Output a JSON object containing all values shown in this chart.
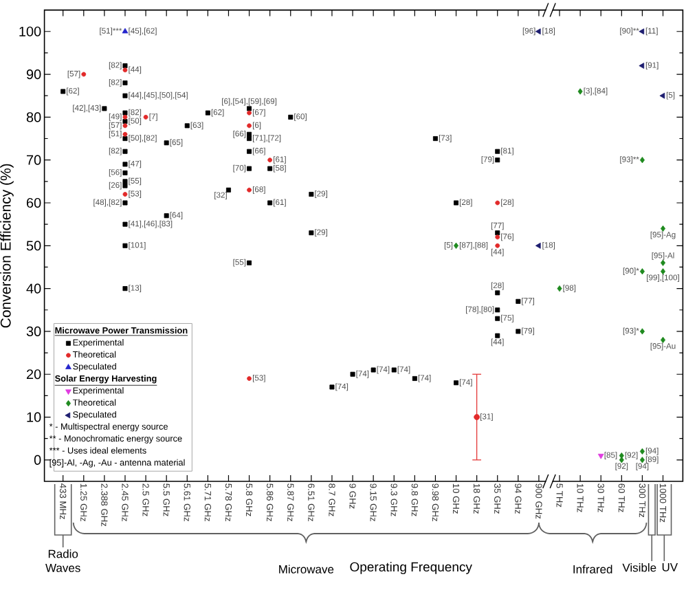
{
  "chart_data": {
    "type": "scatter",
    "ylabel": "Conversion Efficiency (%)",
    "xlabel": "Operating Frequency",
    "categories": [
      "433 MHz",
      "1.25 GHz",
      "2.388 GHz",
      "2.45 GHz",
      "2.5 GHz",
      "5.5 GHz",
      "5.61 GHz",
      "5.71 GHz",
      "5.78 GHz",
      "5.8 GHz",
      "5.86 GHz",
      "5.87 GHz",
      "6.51 GHz",
      "8.7 GHz",
      "9 GHz",
      "9.15 GHz",
      "9.3 GHz",
      "9.8 GHz",
      "9.98 GHz",
      "10 GHz",
      "18 GHz",
      "35 GHz",
      "94 GHz",
      "900 GHz",
      "5 THz",
      "10 THz",
      "30 THz",
      "60 THz",
      "300 THz",
      "1000 THz"
    ],
    "ylim": [
      -5,
      105
    ],
    "yticks": [
      0,
      10,
      20,
      30,
      40,
      50,
      60,
      70,
      80,
      90,
      100
    ],
    "legend": "bottom left",
    "series": [
      {
        "name": "Experimental",
        "color": "#000000",
        "marker": "square",
        "x": [
          "433 MHz",
          "2.388 GHz",
          "2.45 GHz",
          "2.45 GHz",
          "2.45 GHz",
          "2.45 GHz",
          "2.45 GHz",
          "2.45 GHz",
          "2.45 GHz",
          "2.45 GHz",
          "2.45 GHz",
          "2.45 GHz",
          "2.45 GHz",
          "2.45 GHz",
          "2.45 GHz",
          "2.45 GHz",
          "2.45 GHz",
          "5.5 GHz",
          "5.5 GHz",
          "5.61 GHz",
          "5.71 GHz",
          "5.78 GHz",
          "5.8 GHz",
          "5.8 GHz",
          "5.8 GHz",
          "5.8 GHz",
          "5.8 GHz",
          "5.8 GHz",
          "5.86 GHz",
          "5.86 GHz",
          "5.87 GHz",
          "6.51 GHz",
          "6.51 GHz",
          "8.7 GHz",
          "9 GHz",
          "9.15 GHz",
          "9.3 GHz",
          "9.8 GHz",
          "9.98 GHz",
          "10 GHz",
          "10 GHz",
          "35 GHz",
          "35 GHz",
          "35 GHz",
          "35 GHz",
          "35 GHz",
          "35 GHz",
          "35 GHz",
          "94 GHz",
          "94 GHz"
        ],
        "values": [
          86,
          82,
          92,
          88,
          85,
          81,
          79,
          75,
          72,
          69,
          67,
          65,
          64,
          60,
          55,
          50,
          40,
          74,
          57,
          78,
          81,
          63,
          82,
          76,
          75,
          72,
          68,
          46,
          68,
          60,
          80,
          62,
          53,
          17,
          20,
          21,
          21,
          19,
          75,
          60,
          18,
          72,
          70,
          53,
          39,
          35,
          33,
          29,
          37,
          30
        ]
      },
      {
        "name": "Theoretical",
        "color": "#e22a2a",
        "marker": "circle",
        "x": [
          "1.25 GHz",
          "2.45 GHz",
          "2.45 GHz",
          "2.45 GHz",
          "2.45 GHz",
          "2.45 GHz",
          "2.5 GHz",
          "5.8 GHz",
          "5.8 GHz",
          "5.8 GHz",
          "5.8 GHz",
          "5.86 GHz",
          "18 GHz",
          "35 GHz",
          "35 GHz",
          "35 GHz"
        ],
        "values": [
          90,
          91,
          80,
          78,
          76,
          62,
          80,
          81,
          78,
          63,
          19,
          70,
          10,
          60,
          52,
          50
        ],
        "errors": [
          null,
          null,
          null,
          null,
          null,
          null,
          null,
          null,
          null,
          null,
          null,
          null,
          [
            0,
            20
          ],
          null,
          null,
          null
        ]
      },
      {
        "name": "Speculated",
        "color": "#2626cc",
        "marker": "triangle",
        "x": [
          "2.45 GHz"
        ],
        "values": [
          100
        ]
      },
      {
        "name": "Experimental",
        "color": "#e03ce0",
        "marker": "triangle-down",
        "x": [
          "30 THz"
        ],
        "values": [
          1
        ]
      },
      {
        "name": "Theoretical",
        "color": "#1f8a1f",
        "marker": "diamond",
        "x": [
          "10 GHz",
          "5 THz",
          "10 THz",
          "60 THz",
          "60 THz",
          "300 THz",
          "300 THz",
          "300 THz",
          "300 THz",
          "300 THz",
          "1000 THz",
          "1000 THz",
          "1000 THz",
          "1000 THz"
        ],
        "values": [
          50,
          40,
          86,
          1,
          0,
          70,
          44,
          30,
          2,
          0,
          54,
          46,
          44,
          28
        ]
      },
      {
        "name": "Speculated",
        "color": "#1e1e70",
        "marker": "triangle-left",
        "x": [
          "900 GHz",
          "900 GHz",
          "300 THz",
          "300 THz",
          "1000 THz"
        ],
        "values": [
          100,
          50,
          100,
          92,
          85
        ]
      }
    ],
    "annotations": [
      "Microwave Power Transmission",
      "Solar Energy Harvesting",
      "* - Multispectral energy source",
      "** - Monochromatic energy source",
      "*** - Uses ideal elements",
      "[95]-Al, -Ag, -Au - antenna material",
      "Radio Waves",
      "Microwave",
      "Infrared",
      "Visible",
      "UV",
      {
        "text": "[62]",
        "x": "433 MHz",
        "y": 86
      },
      {
        "text": "[57]",
        "x": "1.25 GHz",
        "y": 90
      },
      {
        "text": "[42],[43]",
        "x": "2.388 GHz",
        "y": 82
      },
      {
        "text": "[51]***",
        "x": "2.45 GHz",
        "y": 100
      },
      {
        "text": "[45],[62]",
        "x": "2.45 GHz",
        "y": 100
      },
      {
        "text": "[82]",
        "x": "2.45 GHz",
        "y": 92
      },
      {
        "text": "[44]",
        "x": "2.45 GHz",
        "y": 91
      },
      {
        "text": "[82]",
        "x": "2.45 GHz",
        "y": 88
      },
      {
        "text": "[44],[45],[50],[54]",
        "x": "2.45 GHz",
        "y": 85
      },
      {
        "text": "[82]",
        "x": "2.45 GHz",
        "y": 81
      },
      {
        "text": "[49]",
        "x": "2.45 GHz",
        "y": 80
      },
      {
        "text": "[50]",
        "x": "2.45 GHz",
        "y": 79
      },
      {
        "text": "[57]",
        "x": "2.45 GHz",
        "y": 78
      },
      {
        "text": "[51]",
        "x": "2.45 GHz",
        "y": 76
      },
      {
        "text": "[50],[82]",
        "x": "2.45 GHz",
        "y": 75
      },
      {
        "text": "[82]",
        "x": "2.45 GHz",
        "y": 72
      },
      {
        "text": "[47]",
        "x": "2.45 GHz",
        "y": 69
      },
      {
        "text": "[56]",
        "x": "2.45 GHz",
        "y": 67
      },
      {
        "text": "[55]",
        "x": "2.45 GHz",
        "y": 65
      },
      {
        "text": "[26]",
        "x": "2.45 GHz",
        "y": 64
      },
      {
        "text": "[53]",
        "x": "2.45 GHz",
        "y": 62
      },
      {
        "text": "[48],[82]",
        "x": "2.45 GHz",
        "y": 60
      },
      {
        "text": "[41],[46],[83]",
        "x": "2.45 GHz",
        "y": 55
      },
      {
        "text": "[101]",
        "x": "2.45 GHz",
        "y": 50
      },
      {
        "text": "[13]",
        "x": "2.45 GHz",
        "y": 40
      },
      {
        "text": "[7]",
        "x": "2.5 GHz",
        "y": 80
      },
      {
        "text": "[65]",
        "x": "5.5 GHz",
        "y": 74
      },
      {
        "text": "[64]",
        "x": "5.5 GHz",
        "y": 57
      },
      {
        "text": "[63]",
        "x": "5.61 GHz",
        "y": 78
      },
      {
        "text": "[62]",
        "x": "5.71 GHz",
        "y": 81
      },
      {
        "text": "[32]",
        "x": "5.78 GHz",
        "y": 63
      },
      {
        "text": "[6],[54],[59],[69]",
        "x": "5.8 GHz",
        "y": 82
      },
      {
        "text": "[67]",
        "x": "5.8 GHz",
        "y": 81
      },
      {
        "text": "[6]",
        "x": "5.8 GHz",
        "y": 78
      },
      {
        "text": "[66]",
        "x": "5.8 GHz",
        "y": 76
      },
      {
        "text": "[71],[72]",
        "x": "5.8 GHz",
        "y": 75
      },
      {
        "text": "[66]",
        "x": "5.8 GHz",
        "y": 72
      },
      {
        "text": "[70]",
        "x": "5.8 GHz",
        "y": 68
      },
      {
        "text": "[68]",
        "x": "5.8 GHz",
        "y": 63
      },
      {
        "text": "[55]",
        "x": "5.8 GHz",
        "y": 46
      },
      {
        "text": "[53]",
        "x": "5.8 GHz",
        "y": 19
      },
      {
        "text": "[61]",
        "x": "5.86 GHz",
        "y": 70
      },
      {
        "text": "[58]",
        "x": "5.86 GHz",
        "y": 68
      },
      {
        "text": "[61]",
        "x": "5.86 GHz",
        "y": 60
      },
      {
        "text": "[60]",
        "x": "5.87 GHz",
        "y": 80
      },
      {
        "text": "[29]",
        "x": "6.51 GHz",
        "y": 62
      },
      {
        "text": "[29]",
        "x": "6.51 GHz",
        "y": 53
      },
      {
        "text": "[74]",
        "x": "8.7 GHz",
        "y": 17
      },
      {
        "text": "[74]",
        "x": "9 GHz",
        "y": 20
      },
      {
        "text": "[74]",
        "x": "9.15 GHz",
        "y": 21
      },
      {
        "text": "[74]",
        "x": "9.3 GHz",
        "y": 21
      },
      {
        "text": "[74]",
        "x": "9.8 GHz",
        "y": 19
      },
      {
        "text": "[73]",
        "x": "9.98 GHz",
        "y": 75
      },
      {
        "text": "[28]",
        "x": "10 GHz",
        "y": 60
      },
      {
        "text": "[74]",
        "x": "10 GHz",
        "y": 18
      },
      {
        "text": "[5]",
        "x": "10 GHz",
        "y": 50
      },
      {
        "text": "[87],[88]",
        "x": "10 GHz",
        "y": 50
      },
      {
        "text": "[31]",
        "x": "18 GHz",
        "y": 10
      },
      {
        "text": "[81]",
        "x": "35 GHz",
        "y": 72
      },
      {
        "text": "[79]",
        "x": "35 GHz",
        "y": 70
      },
      {
        "text": "[28]",
        "x": "35 GHz",
        "y": 60
      },
      {
        "text": "[77]",
        "x": "35 GHz",
        "y": 53
      },
      {
        "text": "[76]",
        "x": "35 GHz",
        "y": 52
      },
      {
        "text": "[44]",
        "x": "35 GHz",
        "y": 50
      },
      {
        "text": "[28]",
        "x": "35 GHz",
        "y": 39
      },
      {
        "text": "[78],[80]",
        "x": "35 GHz",
        "y": 35
      },
      {
        "text": "[75]",
        "x": "35 GHz",
        "y": 33
      },
      {
        "text": "[44]",
        "x": "35 GHz",
        "y": 29
      },
      {
        "text": "[77]",
        "x": "94 GHz",
        "y": 37
      },
      {
        "text": "[79]",
        "x": "94 GHz",
        "y": 30
      },
      {
        "text": "[96]",
        "x": "900 GHz",
        "y": 100
      },
      {
        "text": "[18]",
        "x": "900 GHz",
        "y": 100
      },
      {
        "text": "[18]",
        "x": "900 GHz",
        "y": 50
      },
      {
        "text": "[98]",
        "x": "5 THz",
        "y": 40
      },
      {
        "text": "[3],[84]",
        "x": "10 THz",
        "y": 86
      },
      {
        "text": "[85]",
        "x": "30 THz",
        "y": 1
      },
      {
        "text": "[92]",
        "x": "60 THz",
        "y": 1
      },
      {
        "text": "[92]",
        "x": "60 THz",
        "y": 0
      },
      {
        "text": "[90]**",
        "x": "300 THz",
        "y": 100
      },
      {
        "text": "[11]",
        "x": "300 THz",
        "y": 100
      },
      {
        "text": "[91]",
        "x": "300 THz",
        "y": 92
      },
      {
        "text": "[93]**",
        "x": "300 THz",
        "y": 70
      },
      {
        "text": "[90]*",
        "x": "300 THz",
        "y": 44
      },
      {
        "text": "[93]*",
        "x": "300 THz",
        "y": 30
      },
      {
        "text": "[94]",
        "x": "300 THz",
        "y": 2
      },
      {
        "text": "[89]",
        "x": "300 THz",
        "y": 0
      },
      {
        "text": "[94]",
        "x": "300 THz",
        "y": 0
      },
      {
        "text": "[5]",
        "x": "1000 THz",
        "y": 85
      },
      {
        "text": "[95]-Ag",
        "x": "1000 THz",
        "y": 54
      },
      {
        "text": "[95]-Al",
        "x": "1000 THz",
        "y": 46
      },
      {
        "text": "[99],[100]",
        "x": "1000 THz",
        "y": 44
      },
      {
        "text": "[95]-Au",
        "x": "1000 THz",
        "y": 28
      }
    ]
  }
}
